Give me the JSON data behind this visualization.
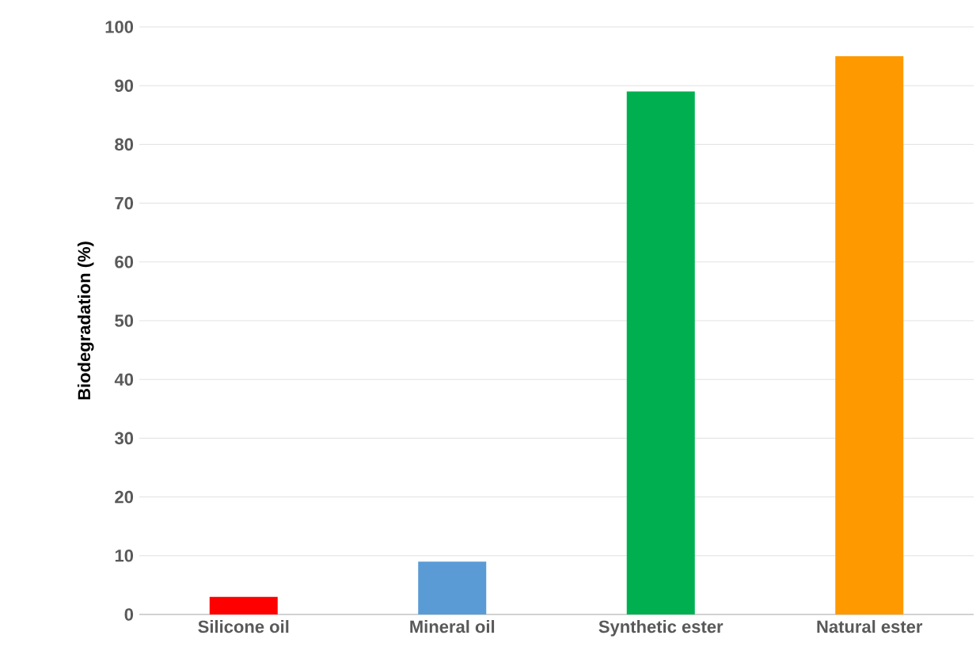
{
  "chart_data": {
    "type": "bar",
    "ylabel": "Biodegradation (%)",
    "categories": [
      "Silicone oil",
      "Mineral oil",
      "Synthetic ester",
      "Natural ester"
    ],
    "values": [
      3,
      9,
      89,
      95
    ],
    "colors": [
      "#ff0000",
      "#5b9bd5",
      "#00b050",
      "#ff9900"
    ],
    "ylim": [
      0,
      100
    ],
    "yticks": [
      0,
      10,
      20,
      30,
      40,
      50,
      60,
      70,
      80,
      90,
      100
    ],
    "grid": "y"
  }
}
